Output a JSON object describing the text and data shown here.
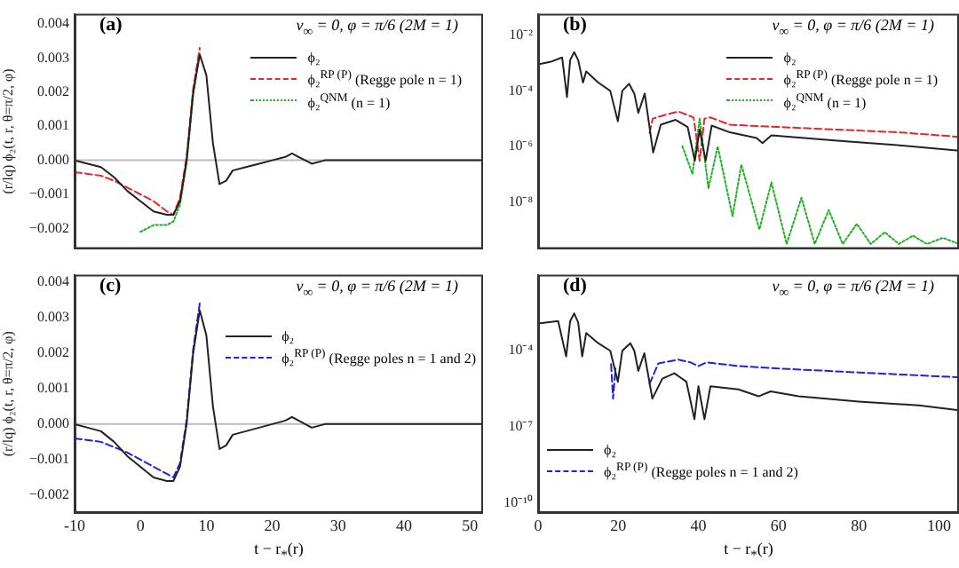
{
  "chart_data": [
    {
      "type": "line",
      "title": "(a)",
      "subtitle": "v$_{∞}$ = 0, φ = π/6 (2M = 1)",
      "ylabel": "(r/lq) ϕ₂(t, r, θ=π/2, φ)",
      "legend": "top right",
      "tick_labels": "y",
      "xlim": [
        -10,
        52
      ],
      "xticks": [
        -10,
        0,
        10,
        20,
        30,
        40,
        50
      ],
      "ylim": [
        -0.0026,
        0.0043
      ],
      "yticks": [
        {
          "value": -0.002,
          "label": "−0.002"
        },
        {
          "value": -0.001,
          "label": "−0.001"
        },
        {
          "value": 0,
          "label": "0.000"
        },
        0.001,
        0.002,
        0.003,
        0.004
      ],
      "ref_lines": [
        {
          "axis": "y",
          "value": 0,
          "color": "#bbbbbb"
        }
      ],
      "series": [
        {
          "name": "ϕ₂",
          "color": "#222222",
          "line_style": "solid",
          "x": [
            -10,
            -8,
            -6,
            -4,
            -2,
            0,
            2,
            4,
            5,
            6,
            7,
            8,
            9,
            10,
            11,
            12,
            13,
            14,
            16,
            18,
            20,
            22,
            23,
            24,
            25,
            26,
            28,
            35,
            40,
            52
          ],
          "values": [
            0,
            -0.0001,
            -0.0002,
            -0.0005,
            -0.0009,
            -0.0012,
            -0.0015,
            -0.0016,
            -0.0016,
            -0.0012,
            0,
            0.002,
            0.0031,
            0.0025,
            0.0005,
            -0.0007,
            -0.0006,
            -0.0003,
            -0.0002,
            -0.0001,
            0,
            0.0001,
            0.0002,
            0.0001,
            0,
            -0.0001,
            0,
            0,
            0,
            0
          ]
        },
        {
          "name": "ϕ₂$^{RP (P)}$ (Regge pole n = 1)",
          "color": "#e8262a",
          "line_style": "dashed",
          "x": [
            -10,
            -8,
            -6,
            -4,
            -2,
            0,
            2,
            4,
            5,
            6,
            7,
            8,
            9
          ],
          "values": [
            -0.00035,
            -0.0004,
            -0.00045,
            -0.0006,
            -0.0008,
            -0.001,
            -0.0012,
            -0.0015,
            -0.0016,
            -0.0011,
            0.0001,
            0.0021,
            0.0033
          ]
        },
        {
          "name": "ϕ₂$^{QNM}$ (n = 1)",
          "color": "#20b020",
          "line_style": "dotted",
          "x": [
            0,
            1,
            2,
            3,
            4,
            5,
            6,
            7,
            8,
            9
          ],
          "values": [
            -0.0021,
            -0.002,
            -0.0019,
            -0.0019,
            -0.0019,
            -0.0018,
            -0.0013,
            -0.0001,
            0.0019,
            0.0032
          ]
        }
      ]
    },
    {
      "type": "line",
      "title": "(b)",
      "subtitle": "v$_{∞}$ = 0, φ = π/6 (2M = 1)",
      "legend": "top right",
      "tick_labels": "y",
      "log": "y",
      "xlim": [
        0,
        105
      ],
      "xticks": [
        0,
        20,
        40,
        60,
        80,
        100
      ],
      "ylim": [
        2e-10,
        0.06
      ],
      "yticks": [
        {
          "value": 1e-08,
          "label": "10⁻⁸"
        },
        {
          "value": 1e-06,
          "label": "10⁻⁶"
        },
        {
          "value": 0.0001,
          "label": "10⁻⁴"
        },
        {
          "value": 0.01,
          "label": "10⁻²"
        }
      ],
      "series": [
        {
          "name": "ϕ₂",
          "color": "#222222",
          "line_style": "solid",
          "x": [
            0,
            3,
            6,
            7.2,
            8,
            9,
            10,
            11.2,
            12,
            15,
            18,
            19.9,
            21,
            22.7,
            24,
            25,
            26.6,
            28.7,
            30.6,
            34.3,
            37.3,
            39.1,
            40.3,
            41.8,
            43.3,
            47.8,
            54.5,
            56,
            58.2,
            74.6,
            89.6,
            105
          ],
          "values": [
            0.0009,
            0.0011,
            0.0016,
            6e-05,
            0.0013,
            0.0025,
            0.0013,
            0.0002,
            0.0005,
            0.0002,
            0.0001,
            8e-06,
            0.0001,
            0.00018,
            8e-05,
            1.6e-05,
            8e-05,
            6e-07,
            6e-06,
            9e-06,
            5e-06,
            3e-07,
            4e-06,
            3e-07,
            5.6e-06,
            3.2e-06,
            2e-06,
            1.3e-06,
            2.5e-06,
            1.6e-06,
            1.1e-06,
            7e-07
          ]
        },
        {
          "name": "ϕ₂$^{RP (P)}$ (Regge pole n = 1)",
          "color": "#e8262a",
          "line_style": "dashed",
          "x": [
            27.8,
            28.6,
            32,
            35,
            38.8,
            40.3,
            41.5,
            43,
            47.8,
            59.7,
            74.6,
            90,
            105
          ],
          "values": [
            3e-06,
            1e-05,
            1.4e-05,
            1.8e-05,
            1.1e-05,
            3e-07,
            1e-05,
            1.1e-05,
            6e-06,
            5e-06,
            4e-06,
            3.2e-06,
            2.2e-06
          ]
        },
        {
          "name": "ϕ₂$^{QNM}$ (n = 1)",
          "color": "#20b020",
          "line_style": "dotted",
          "x": [
            36,
            38.5,
            40.3,
            42.5,
            44.8,
            48.5,
            50.7,
            55.2,
            58.2,
            62,
            65.7,
            69,
            72.5,
            76,
            79.5,
            83,
            86.5,
            90,
            93.5,
            97,
            101,
            105
          ],
          "values": [
            1e-06,
            1e-07,
            1e-05,
            3e-08,
            1e-06,
            3e-09,
            2.2e-07,
            1e-09,
            5e-08,
            3e-10,
            1.4e-08,
            3e-10,
            5e-09,
            3e-10,
            1.6e-09,
            3e-10,
            8e-10,
            3e-10,
            6e-10,
            3e-10,
            5e-10,
            3e-10
          ]
        }
      ]
    },
    {
      "type": "line",
      "title": "(c)",
      "subtitle": "v$_{∞}$ = 0, φ = π/6 (2M = 1)",
      "ylabel": "(r/lq) ϕ₂(t, r, θ=π/2, φ)",
      "xlabel": "t − r$_{*}$(r)",
      "legend": "right",
      "xlim": [
        -10,
        52
      ],
      "xticks": [
        -10,
        0,
        10,
        20,
        30,
        40,
        50
      ],
      "ylim": [
        -0.0025,
        0.0042
      ],
      "yticks": [
        {
          "value": -0.002,
          "label": "−0.002"
        },
        {
          "value": -0.001,
          "label": "−0.001"
        },
        {
          "value": 0,
          "label": "0.000"
        },
        0.001,
        0.002,
        0.003,
        0.004
      ],
      "ref_lines": [
        {
          "axis": "y",
          "value": 0,
          "color": "#bbbbbb"
        }
      ],
      "series": [
        {
          "name": "ϕ₂",
          "color": "#222222",
          "line_style": "solid",
          "x": [
            -10,
            -8,
            -6,
            -4,
            -2,
            0,
            2,
            4,
            5,
            6,
            7,
            8,
            9,
            10,
            11,
            12,
            13,
            14,
            16,
            18,
            20,
            22,
            23,
            24,
            25,
            26,
            28,
            35,
            40,
            52
          ],
          "values": [
            0,
            -0.0001,
            -0.0002,
            -0.0005,
            -0.0009,
            -0.0012,
            -0.0015,
            -0.0016,
            -0.0016,
            -0.0012,
            0,
            0.002,
            0.0032,
            0.0025,
            0.0005,
            -0.0007,
            -0.0006,
            -0.0003,
            -0.0002,
            -0.0001,
            0,
            0.0001,
            0.0002,
            0.0001,
            0,
            -0.0001,
            0,
            0,
            0,
            0
          ]
        },
        {
          "name": "ϕ₂$^{RP (P)}$ (Regge poles n = 1 and 2)",
          "color": "#2020e0",
          "line_style": "dashed",
          "x": [
            -10,
            -6,
            -2,
            0,
            2,
            4,
            5,
            6,
            7,
            8,
            9
          ],
          "values": [
            -0.0004,
            -0.0005,
            -0.0008,
            -0.001,
            -0.0012,
            -0.0014,
            -0.0015,
            -0.0011,
            0.0001,
            0.0021,
            0.0034
          ]
        }
      ]
    },
    {
      "type": "line",
      "title": "(d)",
      "subtitle": "v$_{∞}$ = 0, φ = π/6 (2M = 1)",
      "xlabel": "t − r$_{*}$(r)",
      "legend": "bottom left",
      "log": "y",
      "xlim": [
        0,
        105
      ],
      "xticks": [
        0,
        20,
        40,
        60,
        80,
        100
      ],
      "ylim": [
        4e-11,
        0.1
      ],
      "yticks": [
        {
          "value": 1e-10,
          "label": "10⁻¹⁰"
        },
        {
          "value": 1e-07,
          "label": "10⁻⁷"
        },
        {
          "value": 0.0001,
          "label": "10⁻⁴"
        }
      ],
      "series": [
        {
          "name": "ϕ₂",
          "color": "#222222",
          "line_style": "solid",
          "x": [
            0,
            5,
            7,
            8,
            9,
            10,
            11,
            12,
            15,
            18,
            19.9,
            21,
            23,
            24,
            25,
            26.5,
            28.5,
            31,
            34,
            37,
            39,
            40,
            41.5,
            43,
            50,
            55,
            58,
            65,
            80,
            95,
            105
          ],
          "values": [
            0.0012,
            0.0015,
            6e-05,
            0.0015,
            0.003,
            0.0013,
            6e-05,
            0.0005,
            0.0002,
            0.0001,
            6e-06,
            0.0001,
            0.0002,
            0.0001,
            1.6e-05,
            8e-05,
            1.3e-06,
            8e-06,
            1.3e-05,
            6e-06,
            2e-07,
            4e-06,
            2e-07,
            4e-06,
            3e-06,
            1.6e-06,
            2.5e-06,
            1.6e-06,
            1e-06,
            7e-07,
            4.5e-07
          ]
        },
        {
          "name": "ϕ₂$^{RP (P)}$ (Regge poles n = 1 and 2)",
          "color": "#2020e0",
          "line_style": "dashed",
          "x": [
            18.2,
            18.7,
            19.3,
            20,
            27.8,
            30,
            35,
            38,
            40,
            42,
            50,
            60,
            80,
            105
          ],
          "values": [
            3e-05,
            1.3e-06,
            2e-05,
            null,
            5e-06,
            3.2e-05,
            4.5e-05,
            3.5e-05,
            2.5e-05,
            3.5e-05,
            2.5e-05,
            2e-05,
            1.4e-05,
            9e-06
          ]
        }
      ]
    }
  ]
}
